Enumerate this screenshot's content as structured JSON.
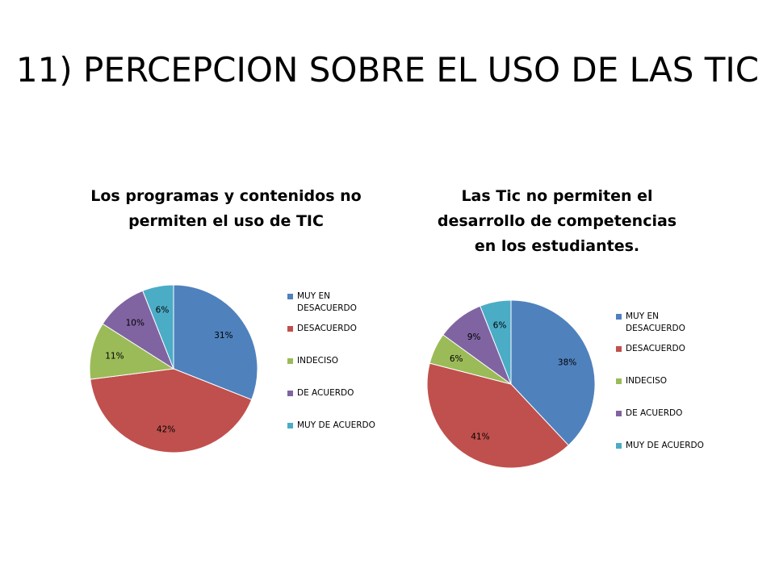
{
  "slide": {
    "title": "11) PERCEPCION SOBRE EL USO DE LAS TIC"
  },
  "chart_data": [
    {
      "type": "pie",
      "title": "Los programas y  contenidos no permiten el uso de TIC",
      "title_lines": [
        "Los programas y  contenidos no",
        "permiten el uso de TIC"
      ],
      "categories": [
        "MUY EN DESACUERDO",
        "DESACUERDO",
        "INDECISO",
        "DE ACUERDO",
        "MUY DE ACUERDO"
      ],
      "values": [
        31,
        42,
        11,
        10,
        6
      ],
      "labels": [
        "31%",
        "42%",
        "11%",
        "10%",
        "6%"
      ],
      "colors": [
        "#4F81BD",
        "#C0504D",
        "#9BBB59",
        "#8064A2",
        "#4BACC6"
      ],
      "legend_position": "right"
    },
    {
      "type": "pie",
      "title": "Las Tic no permiten el desarrollo de competencias en los estudiantes.",
      "title_lines": [
        "Las Tic no permiten el",
        "desarrollo de competencias",
        "en los estudiantes."
      ],
      "categories": [
        "MUY EN DESACUERDO",
        "DESACUERDO",
        "INDECISO",
        "DE ACUERDO",
        "MUY DE ACUERDO"
      ],
      "values": [
        38,
        41,
        6,
        9,
        6
      ],
      "labels": [
        "38%",
        "41%",
        "6%",
        "9%",
        "6%"
      ],
      "colors": [
        "#4F81BD",
        "#C0504D",
        "#9BBB59",
        "#8064A2",
        "#4BACC6"
      ],
      "legend_position": "right"
    }
  ]
}
